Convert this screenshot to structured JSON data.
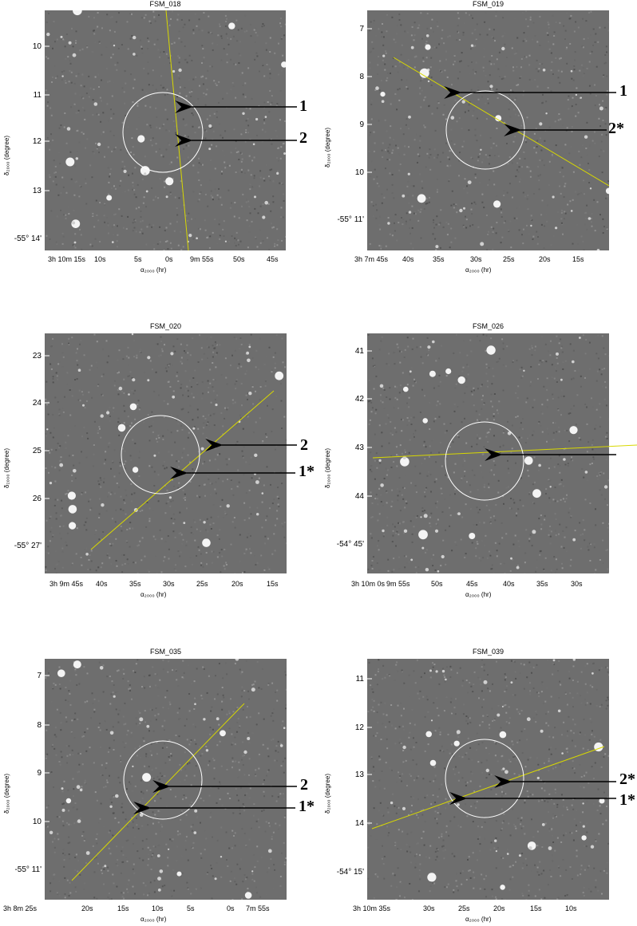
{
  "colors": {
    "background_image": "#6e6e6e",
    "track_line": "#d8d800",
    "circle": "#ffffff",
    "arrow": "#000000"
  },
  "axis_labels": {
    "xlabel": "α₂₀₀₀ (hr)",
    "ylabel": "δ₂₀₀₀ (degree)"
  },
  "panels": [
    {
      "title": "FSM_018",
      "yticks": [
        "10",
        "11",
        "12",
        "13",
        "-55° 14'"
      ],
      "xticks": [
        "3h 10m 15s",
        "10s",
        "5s",
        "0s",
        "9m 55s",
        "50s",
        "45s"
      ],
      "callouts": [
        "1",
        "2"
      ]
    },
    {
      "title": "FSM_019",
      "yticks": [
        "7",
        "8",
        "9",
        "10",
        "-55° 11'"
      ],
      "xticks": [
        "3h 7m 45s",
        "40s",
        "35s",
        "30s",
        "25s",
        "20s",
        "15s"
      ],
      "callouts": [
        "1",
        "2*"
      ]
    },
    {
      "title": "FSM_020",
      "yticks": [
        "23",
        "24",
        "25",
        "26",
        "-55° 27'"
      ],
      "xticks": [
        "3h 9m 45s",
        "40s",
        "35s",
        "30s",
        "25s",
        "20s",
        "15s"
      ],
      "callouts": [
        "2",
        "1*"
      ]
    },
    {
      "title": "FSM_026",
      "yticks": [
        "41",
        "42",
        "43",
        "44",
        "-54° 45'"
      ],
      "xticks": [
        "3h 10m 0s",
        "9m 55s",
        "50s",
        "45s",
        "40s",
        "35s",
        "30s"
      ],
      "callouts": []
    },
    {
      "title": "FSM_035",
      "yticks": [
        "7",
        "8",
        "9",
        "10",
        "-55° 11'"
      ],
      "xticks": [
        "3h 8m 25s",
        "20s",
        "15s",
        "10s",
        "5s",
        "0s",
        "7m 55s"
      ],
      "callouts": [
        "2",
        "1*"
      ]
    },
    {
      "title": "FSM_039",
      "yticks": [
        "11",
        "12",
        "13",
        "14",
        "-54° 15'"
      ],
      "xticks": [
        "3h 10m 35s",
        "30s",
        "25s",
        "20s",
        "15s",
        "10s"
      ],
      "callouts": [
        "2*",
        "1*"
      ]
    }
  ]
}
